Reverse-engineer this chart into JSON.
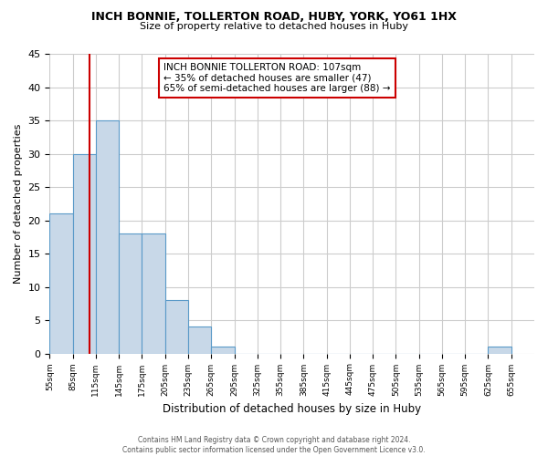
{
  "title1": "INCH BONNIE, TOLLERTON ROAD, HUBY, YORK, YO61 1HX",
  "title2": "Size of property relative to detached houses in Huby",
  "xlabel": "Distribution of detached houses by size in Huby",
  "ylabel": "Number of detached properties",
  "footnote": "Contains HM Land Registry data © Crown copyright and database right 2024.\nContains public sector information licensed under the Open Government Licence v3.0.",
  "bin_edges": [
    55,
    85,
    115,
    145,
    175,
    205,
    235,
    265,
    295,
    325,
    355,
    385,
    415,
    445,
    475,
    505,
    535,
    565,
    595,
    625,
    655
  ],
  "bar_heights": [
    21,
    30,
    35,
    18,
    18,
    8,
    4,
    1,
    0,
    0,
    0,
    0,
    0,
    0,
    0,
    0,
    0,
    0,
    0,
    1
  ],
  "bar_color": "#c8d8e8",
  "bar_edge_color": "#5a9ac8",
  "property_size": 107,
  "vline_color": "#cc0000",
  "annotation_text": "INCH BONNIE TOLLERTON ROAD: 107sqm\n← 35% of detached houses are smaller (47)\n65% of semi-detached houses are larger (88) →",
  "annotation_box_color": "#ffffff",
  "annotation_box_edge": "#cc0000",
  "ylim": [
    0,
    45
  ],
  "yticks": [
    0,
    5,
    10,
    15,
    20,
    25,
    30,
    35,
    40,
    45
  ],
  "background_color": "#ffffff",
  "grid_color": "#cccccc",
  "figwidth": 6.0,
  "figheight": 5.0,
  "dpi": 100
}
